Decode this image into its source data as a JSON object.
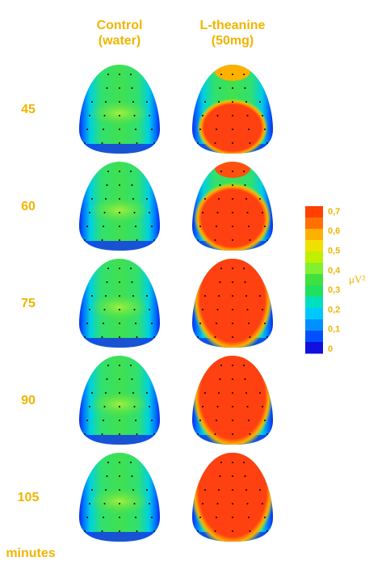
{
  "columns": [
    {
      "line1": "Control",
      "line2": "(water)"
    },
    {
      "line1": "L-theanine",
      "line2": "(50mg)"
    }
  ],
  "rows": [
    "45",
    "60",
    "75",
    "90",
    "105"
  ],
  "axis_unit": "minutes",
  "colorbar": {
    "labels": [
      "0,7",
      "0,6",
      "0,5",
      "0,4",
      "0,3",
      "0,2",
      "0,1",
      "0"
    ],
    "unit": "μV²"
  }
}
